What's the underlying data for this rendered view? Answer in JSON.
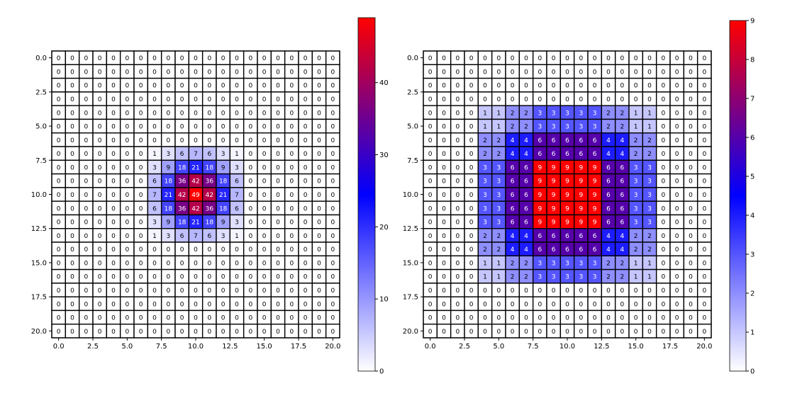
{
  "chart_data": [
    {
      "type": "heatmap",
      "title": "",
      "xlabel": "",
      "ylabel": "",
      "colormap": "bwr-white-blue-red",
      "colors": {
        "low": "#ffffff",
        "mid": "#0000ff",
        "high": "#ff0000",
        "grid": "#000000"
      },
      "x_ticks": [
        "0.0",
        "2.5",
        "5.0",
        "7.5",
        "10.0",
        "12.5",
        "15.0",
        "17.5",
        "20.0"
      ],
      "y_ticks": [
        "0.0",
        "2.5",
        "5.0",
        "7.5",
        "10.0",
        "12.5",
        "15.0",
        "17.5",
        "20.0"
      ],
      "xlim": [
        -0.5,
        20.5
      ],
      "ylim": [
        20.5,
        -0.5
      ],
      "colorbar": {
        "vmin": 0,
        "vmax": 49,
        "ticks": [
          "0",
          "10",
          "20",
          "30",
          "40"
        ],
        "tick_values": [
          0,
          10,
          20,
          30,
          40
        ]
      },
      "grid_size": 21,
      "nonzero_block": {
        "row_start": 7,
        "col_start": 7,
        "values": [
          [
            1,
            3,
            6,
            7,
            6,
            3,
            1
          ],
          [
            3,
            9,
            18,
            21,
            18,
            9,
            3
          ],
          [
            6,
            18,
            36,
            42,
            36,
            18,
            6
          ],
          [
            7,
            21,
            42,
            49,
            42,
            21,
            7
          ],
          [
            6,
            18,
            36,
            42,
            36,
            18,
            6
          ],
          [
            3,
            9,
            18,
            21,
            18,
            9,
            3
          ],
          [
            1,
            3,
            6,
            7,
            6,
            3,
            1
          ]
        ]
      }
    },
    {
      "type": "heatmap",
      "title": "",
      "xlabel": "",
      "ylabel": "",
      "colormap": "bwr-white-blue-red",
      "colors": {
        "low": "#ffffff",
        "mid": "#0000ff",
        "high": "#ff0000",
        "grid": "#000000"
      },
      "x_ticks": [
        "0.0",
        "2.5",
        "5.0",
        "7.5",
        "10.0",
        "12.5",
        "15.0",
        "17.5",
        "20.0"
      ],
      "y_ticks": [
        "0.0",
        "2.5",
        "5.0",
        "7.5",
        "10.0",
        "12.5",
        "15.0",
        "17.5",
        "20.0"
      ],
      "xlim": [
        -0.5,
        20.5
      ],
      "ylim": [
        20.5,
        -0.5
      ],
      "colorbar": {
        "vmin": 0,
        "vmax": 9,
        "ticks": [
          "0",
          "1",
          "2",
          "3",
          "4",
          "5",
          "6",
          "7",
          "8",
          "9"
        ],
        "tick_values": [
          0,
          1,
          2,
          3,
          4,
          5,
          6,
          7,
          8,
          9
        ]
      },
      "grid_size": 21,
      "nonzero_block": {
        "row_start": 4,
        "col_start": 4,
        "values": [
          [
            1,
            1,
            2,
            2,
            3,
            3,
            3,
            3,
            3,
            2,
            2,
            1,
            1
          ],
          [
            1,
            1,
            2,
            2,
            3,
            3,
            3,
            3,
            3,
            2,
            2,
            1,
            1
          ],
          [
            2,
            2,
            4,
            4,
            6,
            6,
            6,
            6,
            6,
            4,
            4,
            2,
            2
          ],
          [
            2,
            2,
            4,
            4,
            6,
            6,
            6,
            6,
            6,
            4,
            4,
            2,
            2
          ],
          [
            3,
            3,
            6,
            6,
            9,
            9,
            9,
            9,
            9,
            6,
            6,
            3,
            3
          ],
          [
            3,
            3,
            6,
            6,
            9,
            9,
            9,
            9,
            9,
            6,
            6,
            3,
            3
          ],
          [
            3,
            3,
            6,
            6,
            9,
            9,
            9,
            9,
            9,
            6,
            6,
            3,
            3
          ],
          [
            3,
            3,
            6,
            6,
            9,
            9,
            9,
            9,
            9,
            6,
            6,
            3,
            3
          ],
          [
            3,
            3,
            6,
            6,
            9,
            9,
            9,
            9,
            9,
            6,
            6,
            3,
            3
          ],
          [
            2,
            2,
            4,
            4,
            6,
            6,
            6,
            6,
            6,
            4,
            4,
            2,
            2
          ],
          [
            2,
            2,
            4,
            4,
            6,
            6,
            6,
            6,
            6,
            4,
            4,
            2,
            2
          ],
          [
            1,
            1,
            2,
            2,
            3,
            3,
            3,
            3,
            3,
            2,
            2,
            1,
            1
          ],
          [
            1,
            1,
            2,
            2,
            3,
            3,
            3,
            3,
            3,
            2,
            2,
            1,
            1
          ]
        ]
      }
    }
  ]
}
